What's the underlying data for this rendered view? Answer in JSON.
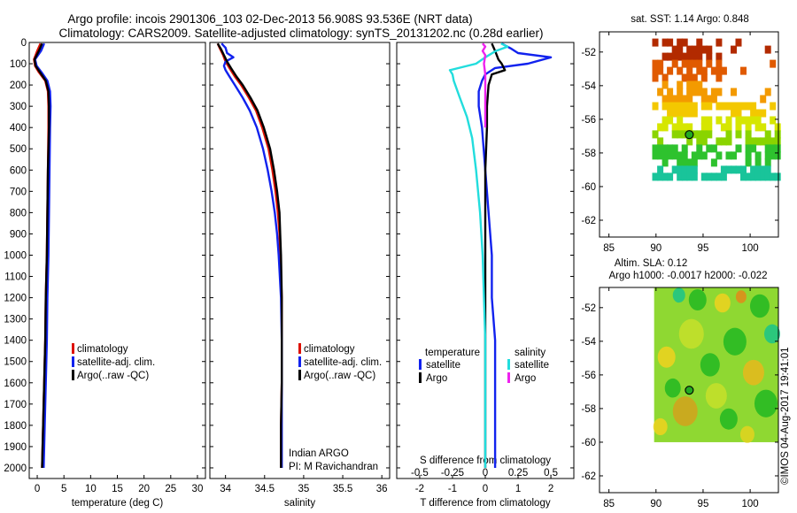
{
  "title_line1": "Argo profile: incois 2901306_103 02-Dec-2013 56.908S 93.536E (NRT data)",
  "title_line2": "Climatology: CARS2009. Satellite-adjusted climatology: synTS_20131202.nc (0.28d earlier)",
  "watermark": "©IMOS 04-Aug-2017 19:41:01",
  "colors": {
    "climatology": "#dd1100",
    "satellite": "#1122ee",
    "argo": "#000000",
    "sal_satellite": "#22dddd",
    "sal_argo": "#ee22ee"
  },
  "chart_data": [
    {
      "type": "line",
      "panel": "temperature",
      "xlabel": "temperature (deg C)",
      "xlim": [
        -1.5,
        31.5
      ],
      "xticks": [
        0,
        5,
        10,
        15,
        20,
        25,
        30
      ],
      "xtick_labels": [
        "0",
        "5",
        "10",
        "15",
        "20",
        "25",
        "30"
      ],
      "ylim": [
        0,
        2050
      ],
      "yticks": [
        0,
        100,
        200,
        300,
        400,
        500,
        600,
        700,
        800,
        900,
        1000,
        1100,
        1200,
        1300,
        1400,
        1500,
        1600,
        1700,
        1800,
        1900,
        2000
      ],
      "ytick_labels": [
        "0",
        "100",
        "200",
        "300",
        "400",
        "500",
        "600",
        "700",
        "800",
        "900",
        "1000",
        "1100",
        "1200",
        "1300",
        "1400",
        "1500",
        "1600",
        "1700",
        "1800",
        "1900",
        "2000"
      ],
      "legend": [
        "climatology",
        "satellite-adj. clim.",
        "Argo(..raw -QC)"
      ],
      "series": [
        {
          "name": "climatology",
          "color_key": "climatology",
          "depth": [
            5,
            40,
            80,
            110,
            140,
            180,
            230,
            300,
            400,
            600,
            800,
            1000,
            1200,
            1400,
            1600,
            1800,
            2000
          ],
          "values": [
            0.6,
            0.0,
            -0.6,
            -0.4,
            0.3,
            1.5,
            2.0,
            2.1,
            2.1,
            2.0,
            1.9,
            1.8,
            1.6,
            1.5,
            1.3,
            1.1,
            0.9
          ]
        },
        {
          "name": "satellite-adj. clim.",
          "color_key": "satellite",
          "depth": [
            5,
            40,
            80,
            110,
            140,
            180,
            230,
            300,
            400,
            600,
            800,
            1000,
            1200,
            1400,
            1600,
            1800,
            2000
          ],
          "values": [
            1.3,
            0.7,
            -0.4,
            -0.1,
            0.8,
            1.9,
            2.4,
            2.5,
            2.4,
            2.3,
            2.2,
            2.1,
            1.9,
            1.8,
            1.6,
            1.4,
            1.2
          ]
        },
        {
          "name": "Argo(..raw -QC)",
          "color_key": "argo",
          "depth": [
            5,
            40,
            80,
            110,
            140,
            180,
            230,
            300,
            400,
            600,
            800,
            1000,
            1200,
            1400,
            1600,
            1800,
            2000
          ],
          "values": [
            0.9,
            0.3,
            -0.5,
            -0.3,
            0.5,
            1.6,
            2.1,
            2.2,
            2.2,
            2.0,
            1.9,
            1.8,
            1.6,
            1.5,
            1.3,
            1.1,
            0.9
          ]
        }
      ]
    },
    {
      "type": "line",
      "panel": "salinity",
      "xlabel": "salinity",
      "xlim": [
        33.8,
        36.1
      ],
      "xticks": [
        34,
        34.5,
        35,
        35.5,
        36
      ],
      "xtick_labels": [
        "34",
        "34.5",
        "35",
        "35.5",
        "36"
      ],
      "ylim": [
        0,
        2050
      ],
      "legend": [
        "climatology",
        "satellite-adj. clim.",
        "Argo(..raw -QC)"
      ],
      "annotation": [
        "Indian ARGO",
        "PI: M Ravichandran"
      ],
      "series": [
        {
          "name": "climatology",
          "color_key": "climatology",
          "depth": [
            5,
            30,
            60,
            90,
            120,
            160,
            200,
            260,
            320,
            400,
            500,
            600,
            700,
            800,
            900,
            1000,
            1200,
            1400,
            1600,
            1800,
            2000
          ],
          "values": [
            33.9,
            33.93,
            33.97,
            34.0,
            34.05,
            34.12,
            34.2,
            34.3,
            34.39,
            34.47,
            34.55,
            34.6,
            34.64,
            34.67,
            34.69,
            34.7,
            34.72,
            34.72,
            34.72,
            34.71,
            34.71
          ]
        },
        {
          "name": "satellite-adj. clim.",
          "color_key": "satellite",
          "depth": [
            5,
            25,
            50,
            70,
            90,
            110,
            130,
            160,
            200,
            260,
            320,
            400,
            500,
            600,
            700,
            800,
            900,
            1000,
            1200,
            1400,
            1600,
            1800,
            2000
          ],
          "values": [
            33.95,
            34.0,
            34.02,
            34.1,
            34.0,
            33.98,
            34.0,
            34.05,
            34.12,
            34.22,
            34.31,
            34.4,
            34.48,
            34.54,
            34.59,
            34.63,
            34.66,
            34.68,
            34.71,
            34.72,
            34.72,
            34.72,
            34.72
          ]
        },
        {
          "name": "Argo(..raw -QC)",
          "color_key": "argo",
          "depth": [
            5,
            30,
            60,
            90,
            120,
            160,
            200,
            260,
            320,
            400,
            500,
            600,
            700,
            800,
            900,
            1000,
            1200,
            1400,
            1600,
            1800,
            2000
          ],
          "values": [
            33.9,
            33.94,
            33.98,
            34.02,
            34.07,
            34.14,
            34.22,
            34.32,
            34.41,
            34.49,
            34.57,
            34.62,
            34.66,
            34.69,
            34.7,
            34.71,
            34.72,
            34.72,
            34.72,
            34.71,
            34.71
          ]
        }
      ]
    },
    {
      "type": "line",
      "panel": "difference",
      "xlabel": "T difference from climatology",
      "top_axis_label": "S difference from climatology",
      "xlim": [
        -2.7,
        2.7
      ],
      "xticks": [
        -2,
        -1,
        0,
        1,
        2
      ],
      "xtick_labels": [
        "-2",
        "-1",
        "0",
        "1",
        "2"
      ],
      "top_ticks": [
        -0.5,
        -0.25,
        0,
        0.25,
        0.5
      ],
      "top_tick_labels": [
        "-0.5",
        "-0.25",
        "0",
        "0.25",
        "0.5"
      ],
      "ylim": [
        0,
        2050
      ],
      "legend_headers": [
        "temperature",
        "salinity"
      ],
      "legend": [
        "satellite",
        "Argo",
        "satellite",
        "Argo"
      ],
      "series": [
        {
          "name": "temperature satellite",
          "color_key": "satellite",
          "depth": [
            5,
            30,
            50,
            70,
            100,
            120,
            150,
            180,
            230,
            300,
            400,
            600,
            800,
            1000,
            1200,
            1400,
            1600,
            1800,
            2000
          ],
          "values": [
            0.5,
            0.8,
            1.0,
            2.0,
            1.3,
            0.3,
            0.0,
            -0.1,
            -0.2,
            -0.2,
            -0.1,
            0.0,
            0.1,
            0.2,
            0.2,
            0.3,
            0.3,
            0.3,
            0.3
          ]
        },
        {
          "name": "temperature Argo",
          "color_key": "argo",
          "depth": [
            5,
            40,
            80,
            100,
            130,
            150,
            200,
            300,
            400,
            600,
            800,
            1000,
            1200,
            1400,
            1600,
            1800,
            2000
          ],
          "values": [
            0.2,
            0.3,
            0.4,
            0.5,
            0.6,
            0.2,
            0.1,
            0.05,
            0.05,
            0.0,
            0.0,
            0.0,
            0.0,
            0.0,
            0.0,
            0.0,
            0.0
          ]
        },
        {
          "name": "salinity satellite",
          "color_key": "sal_satellite",
          "depth": [
            5,
            20,
            40,
            70,
            100,
            130,
            150,
            180,
            250,
            350,
            450,
            600,
            800,
            1000,
            1200,
            1400,
            1600,
            1800,
            2000
          ],
          "values": [
            0.12,
            0.17,
            0.08,
            0.0,
            -0.07,
            -0.27,
            -0.25,
            -0.24,
            -0.2,
            -0.14,
            -0.1,
            -0.07,
            -0.04,
            -0.02,
            -0.01,
            0.0,
            0.0,
            0.0,
            0.0
          ]
        },
        {
          "name": "salinity Argo",
          "color_key": "sal_argo",
          "depth": [
            5,
            20,
            40,
            60,
            100,
            150,
            200,
            300,
            400
          ],
          "values": [
            -0.02,
            0.0,
            -0.02,
            0.0,
            -0.01,
            0.0,
            0.0,
            0.0,
            0.0
          ]
        }
      ]
    },
    {
      "type": "heatmap",
      "panel": "sst_map",
      "title": "sat. SST: 1.14 Argo: 0.848",
      "xlim": [
        84,
        103
      ],
      "ylim": [
        -63,
        -50.8
      ],
      "xticks": [
        85,
        90,
        95,
        100
      ],
      "yticks": [
        -52,
        -54,
        -56,
        -58,
        -60,
        -62
      ],
      "xtick_labels": [
        "85",
        "90",
        "95",
        "100"
      ],
      "ytick_labels": [
        "-52",
        "-54",
        "-56",
        "-58",
        "-60",
        "-62"
      ],
      "data_extent_lon": [
        89.5,
        103
      ],
      "data_extent_lat": [
        -59.5,
        -51
      ],
      "argo_position": {
        "lon": 93.536,
        "lat": -56.908
      }
    },
    {
      "type": "heatmap",
      "panel": "sla_map",
      "title": "Altim. SLA: 0.12",
      "subtitle": "Argo h1000: -0.0017 h2000: -0.022",
      "xlim": [
        84,
        103
      ],
      "ylim": [
        -63,
        -50.8
      ],
      "xticks": [
        85,
        90,
        95,
        100
      ],
      "yticks": [
        -52,
        -54,
        -56,
        -58,
        -60,
        -62
      ],
      "xtick_labels": [
        "85",
        "90",
        "95",
        "100"
      ],
      "ytick_labels": [
        "-52",
        "-54",
        "-56",
        "-58",
        "-60",
        "-62"
      ],
      "data_extent_lon": [
        89.8,
        103
      ],
      "data_extent_lat": [
        -60,
        -50.8
      ],
      "argo_position": {
        "lon": 93.536,
        "lat": -56.908
      }
    }
  ]
}
